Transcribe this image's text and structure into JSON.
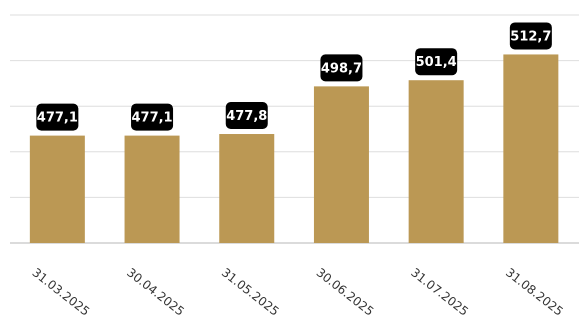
{
  "chart_data": {
    "type": "bar",
    "title": "",
    "xlabel": "",
    "ylabel": "",
    "categories": [
      "31.03.2025",
      "30.04.2025",
      "31.05.2025",
      "30.06.2025",
      "31.07.2025",
      "31.08.2025"
    ],
    "values": [
      477.1,
      477.1,
      477.8,
      498.7,
      501.4,
      512.7
    ],
    "data_labels": [
      "477,1",
      "477,1",
      "477,8",
      "498,7",
      "501,4",
      "512,7"
    ],
    "ylim": [
      430,
      530
    ],
    "grid": true,
    "legend": "none",
    "colors": {
      "bar": "#bb9854",
      "label_box": "#000000",
      "label_text": "#ffffff",
      "grid": "#dedede"
    }
  }
}
